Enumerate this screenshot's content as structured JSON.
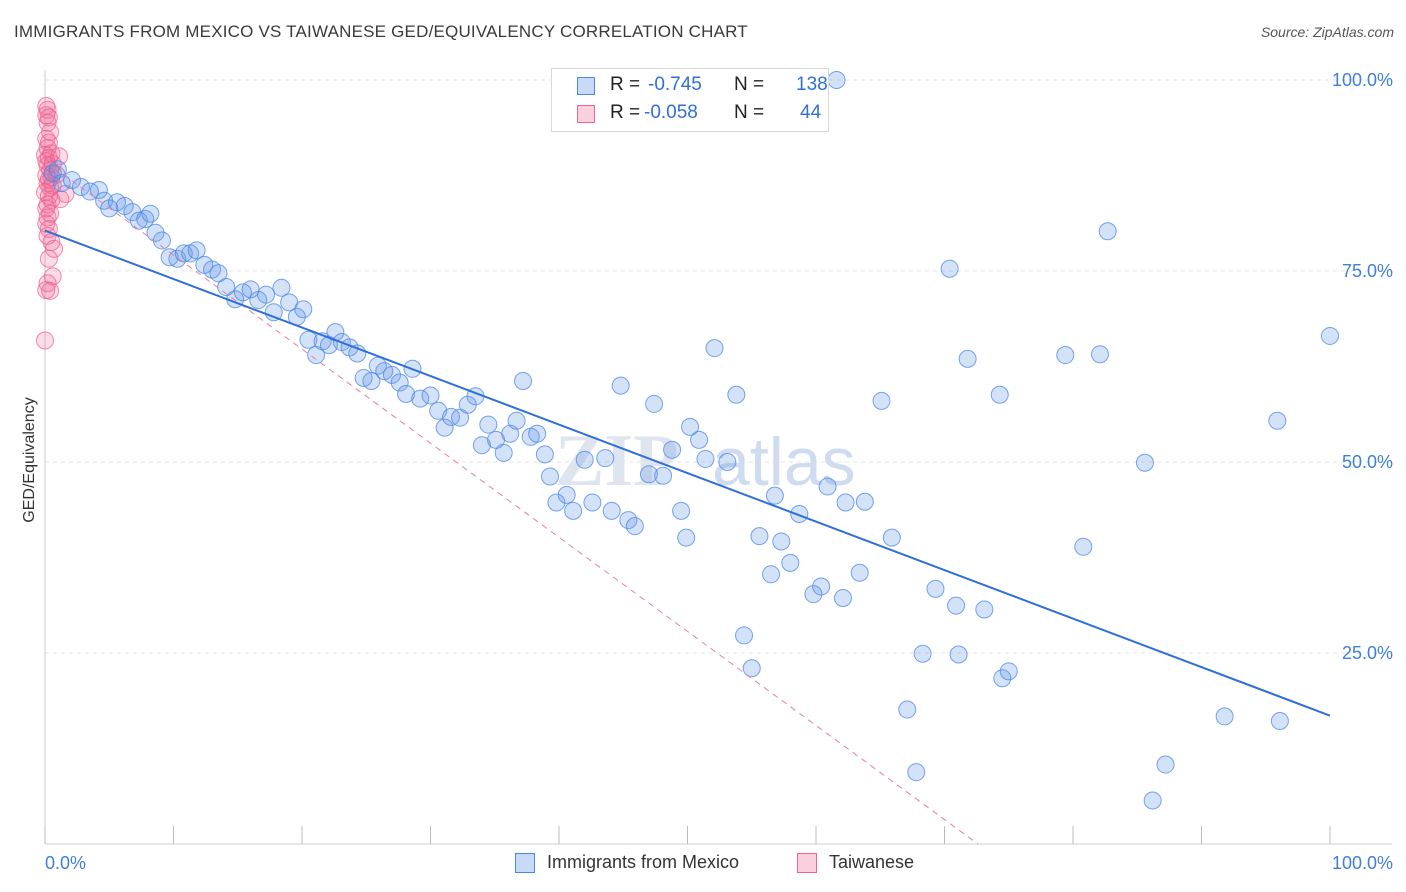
{
  "title": "IMMIGRANTS FROM MEXICO VS TAIWANESE GED/EQUIVALENCY CORRELATION CHART",
  "source": "Source: ZipAtlas.com",
  "watermark": {
    "zip": "ZIP",
    "atlas": "atlas"
  },
  "legend": {
    "rows": [
      {
        "r_label": "R =",
        "r_value": "-0.745",
        "n_label": "N =",
        "n_value": "138"
      },
      {
        "r_label": "R =",
        "r_value": "-0.058",
        "n_label": "N =",
        "n_value": "44"
      }
    ]
  },
  "bottom_legend": [
    "Immigrants from Mexico",
    "Taiwanese"
  ],
  "chart_data": {
    "type": "scatter",
    "title": "IMMIGRANTS FROM MEXICO VS TAIWANESE GED/EQUIVALENCY CORRELATION CHART",
    "xlabel": "",
    "ylabel": "GED/Equivalency",
    "xlim": [
      0,
      100
    ],
    "ylim": [
      0,
      100
    ],
    "x_tick_labels": [
      "0.0%",
      "100.0%"
    ],
    "y_tick_labels": [
      "25.0%",
      "50.0%",
      "75.0%",
      "100.0%"
    ],
    "y_ticks": [
      25,
      50,
      75,
      100
    ],
    "colors": {
      "blue": "#4a86e8",
      "pink": "#f06292",
      "blue_line": "#2f6fd8",
      "pink_line": "#e87fa0",
      "axis_label": "#3f7fd8"
    },
    "series": [
      {
        "name": "Immigrants from Mexico",
        "color": "blue",
        "R": -0.745,
        "N": 138,
        "trend": {
          "x0": 0,
          "y0": 80.3,
          "x1": 100,
          "y1": 16.8
        },
        "points": [
          [
            0.6,
            87.8
          ],
          [
            1.0,
            88.3
          ],
          [
            1.3,
            86.5
          ],
          [
            2.1,
            86.9
          ],
          [
            2.8,
            86.0
          ],
          [
            3.5,
            85.4
          ],
          [
            4.2,
            85.6
          ],
          [
            4.6,
            84.2
          ],
          [
            5.0,
            83.2
          ],
          [
            5.6,
            84.0
          ],
          [
            6.2,
            83.5
          ],
          [
            6.8,
            82.7
          ],
          [
            7.3,
            81.6
          ],
          [
            7.8,
            81.8
          ],
          [
            8.2,
            82.5
          ],
          [
            8.6,
            80.0
          ],
          [
            9.1,
            79.0
          ],
          [
            9.7,
            76.8
          ],
          [
            10.3,
            76.6
          ],
          [
            10.8,
            77.3
          ],
          [
            11.3,
            77.3
          ],
          [
            11.8,
            77.7
          ],
          [
            12.4,
            75.8
          ],
          [
            13.0,
            75.2
          ],
          [
            13.5,
            74.7
          ],
          [
            14.1,
            72.9
          ],
          [
            14.8,
            71.3
          ],
          [
            15.4,
            72.2
          ],
          [
            16.0,
            72.6
          ],
          [
            16.6,
            71.2
          ],
          [
            17.2,
            71.9
          ],
          [
            17.8,
            69.6
          ],
          [
            18.4,
            72.8
          ],
          [
            19.0,
            70.9
          ],
          [
            19.6,
            69.0
          ],
          [
            20.1,
            70.0
          ],
          [
            20.5,
            66.0
          ],
          [
            21.1,
            64.0
          ],
          [
            21.6,
            65.8
          ],
          [
            22.1,
            65.3
          ],
          [
            22.6,
            67.0
          ],
          [
            23.1,
            65.7
          ],
          [
            23.7,
            65.0
          ],
          [
            24.3,
            64.2
          ],
          [
            24.8,
            61.0
          ],
          [
            25.4,
            60.6
          ],
          [
            25.9,
            62.6
          ],
          [
            26.4,
            61.9
          ],
          [
            27.0,
            61.4
          ],
          [
            27.6,
            60.4
          ],
          [
            28.1,
            58.9
          ],
          [
            28.6,
            62.2
          ],
          [
            29.2,
            58.3
          ],
          [
            30.0,
            58.7
          ],
          [
            30.6,
            56.7
          ],
          [
            31.1,
            54.5
          ],
          [
            31.6,
            55.9
          ],
          [
            32.3,
            55.8
          ],
          [
            32.9,
            57.5
          ],
          [
            33.5,
            58.6
          ],
          [
            34.0,
            52.2
          ],
          [
            34.5,
            54.9
          ],
          [
            35.1,
            52.9
          ],
          [
            35.7,
            51.2
          ],
          [
            36.2,
            53.7
          ],
          [
            36.7,
            55.4
          ],
          [
            37.2,
            60.6
          ],
          [
            37.8,
            53.3
          ],
          [
            38.3,
            53.7
          ],
          [
            38.9,
            51.0
          ],
          [
            39.3,
            48.1
          ],
          [
            39.8,
            44.7
          ],
          [
            40.6,
            45.7
          ],
          [
            41.1,
            43.6
          ],
          [
            42.0,
            50.3
          ],
          [
            42.6,
            44.7
          ],
          [
            43.6,
            50.5
          ],
          [
            44.1,
            43.6
          ],
          [
            44.8,
            60.0
          ],
          [
            45.4,
            42.4
          ],
          [
            45.9,
            41.6
          ],
          [
            47.0,
            48.4
          ],
          [
            47.4,
            57.6
          ],
          [
            48.1,
            48.2
          ],
          [
            48.8,
            51.6
          ],
          [
            49.5,
            43.6
          ],
          [
            49.9,
            40.1
          ],
          [
            50.2,
            54.6
          ],
          [
            50.9,
            52.9
          ],
          [
            51.4,
            50.4
          ],
          [
            52.1,
            64.9
          ],
          [
            53.1,
            50.0
          ],
          [
            53.8,
            58.8
          ],
          [
            54.4,
            27.3
          ],
          [
            55.0,
            23.0
          ],
          [
            55.6,
            40.3
          ],
          [
            56.5,
            35.3
          ],
          [
            56.8,
            45.6
          ],
          [
            57.3,
            39.6
          ],
          [
            58.0,
            36.8
          ],
          [
            58.7,
            43.2
          ],
          [
            59.8,
            32.7
          ],
          [
            60.4,
            33.7
          ],
          [
            60.9,
            46.8
          ],
          [
            61.6,
            100.0
          ],
          [
            62.1,
            32.2
          ],
          [
            62.3,
            44.7
          ],
          [
            63.4,
            35.5
          ],
          [
            63.8,
            44.8
          ],
          [
            65.1,
            58.0
          ],
          [
            65.9,
            40.1
          ],
          [
            67.1,
            17.6
          ],
          [
            67.8,
            9.4
          ],
          [
            68.3,
            24.9
          ],
          [
            69.3,
            33.4
          ],
          [
            70.4,
            75.3
          ],
          [
            70.9,
            31.2
          ],
          [
            71.1,
            24.8
          ],
          [
            71.8,
            63.5
          ],
          [
            73.1,
            30.7
          ],
          [
            74.3,
            58.8
          ],
          [
            74.5,
            21.7
          ],
          [
            75.0,
            22.6
          ],
          [
            79.4,
            64.0
          ],
          [
            80.8,
            38.9
          ],
          [
            82.1,
            64.1
          ],
          [
            82.7,
            80.2
          ],
          [
            85.6,
            49.9
          ],
          [
            86.2,
            5.7
          ],
          [
            87.2,
            10.4
          ],
          [
            91.8,
            16.7
          ],
          [
            96.1,
            16.1
          ],
          [
            95.9,
            55.4
          ],
          [
            100.0,
            66.5
          ]
        ]
      },
      {
        "name": "Taiwanese",
        "color": "pink",
        "R": -0.058,
        "N": 44,
        "trend": {
          "x0": 0,
          "y0": 89.4,
          "x1": 72.6,
          "y1": 0.0
        },
        "points": [
          [
            0.1,
            96.6
          ],
          [
            0.2,
            96.1
          ],
          [
            0.1,
            95.4
          ],
          [
            0.3,
            95.1
          ],
          [
            0.2,
            94.4
          ],
          [
            0.4,
            93.2
          ],
          [
            0.1,
            92.3
          ],
          [
            0.3,
            91.8
          ],
          [
            0.2,
            91.1
          ],
          [
            0.0,
            90.2
          ],
          [
            0.5,
            90.4
          ],
          [
            0.3,
            89.8
          ],
          [
            0.1,
            89.4
          ],
          [
            0.6,
            89.0
          ],
          [
            0.2,
            88.8
          ],
          [
            0.4,
            88.2
          ],
          [
            0.1,
            87.5
          ],
          [
            0.5,
            87.3
          ],
          [
            0.3,
            87.0
          ],
          [
            0.2,
            86.5
          ],
          [
            0.6,
            86.2
          ],
          [
            0.4,
            85.9
          ],
          [
            0.0,
            85.3
          ],
          [
            0.3,
            84.8
          ],
          [
            0.5,
            84.3
          ],
          [
            0.2,
            83.7
          ],
          [
            0.1,
            83.2
          ],
          [
            0.4,
            82.5
          ],
          [
            0.2,
            82.0
          ],
          [
            0.1,
            81.2
          ],
          [
            0.3,
            80.5
          ],
          [
            0.2,
            79.6
          ],
          [
            0.5,
            78.8
          ],
          [
            0.7,
            77.9
          ],
          [
            0.3,
            76.6
          ],
          [
            0.6,
            74.3
          ],
          [
            0.2,
            73.4
          ],
          [
            0.1,
            72.5
          ],
          [
            0.4,
            72.4
          ],
          [
            0.0,
            65.9
          ],
          [
            1.1,
            90.0
          ],
          [
            1.6,
            85.1
          ],
          [
            1.2,
            84.4
          ],
          [
            0.9,
            87.6
          ]
        ]
      }
    ]
  }
}
